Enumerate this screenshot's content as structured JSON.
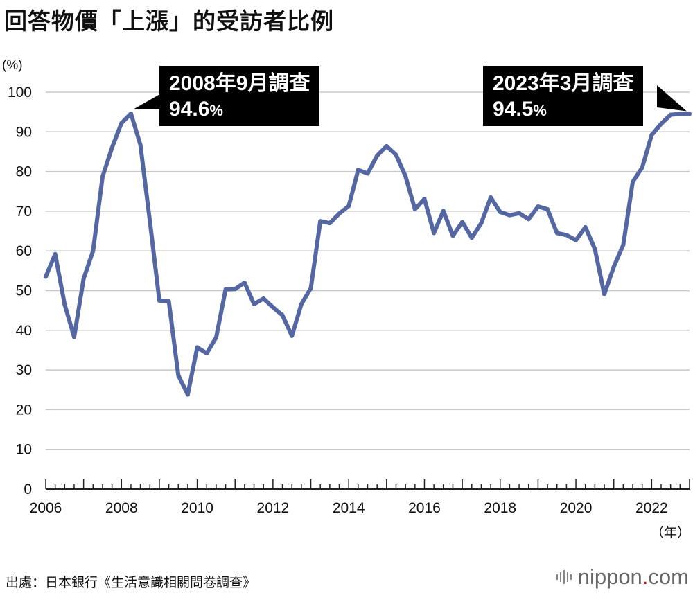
{
  "chart_data": {
    "type": "line",
    "title": "回答物價「上漲」的受訪者比例",
    "ylabel": "(%)",
    "xlabel": "（年）",
    "ylim": [
      0,
      100
    ],
    "xlim": [
      2006,
      2023
    ],
    "grid": true,
    "y_ticks": [
      0,
      10,
      20,
      30,
      40,
      50,
      60,
      70,
      80,
      90,
      100
    ],
    "x_ticks": [
      2006,
      2008,
      2010,
      2012,
      2014,
      2016,
      2018,
      2020,
      2022
    ],
    "series": [
      {
        "name": "回答物價「上漲」的受訪者比例",
        "color": "#5567a3",
        "x": [
          2006.0,
          2006.25,
          2006.5,
          2006.75,
          2007.0,
          2007.25,
          2007.5,
          2007.75,
          2008.0,
          2008.25,
          2008.5,
          2008.75,
          2009.0,
          2009.25,
          2009.5,
          2009.75,
          2010.0,
          2010.25,
          2010.5,
          2010.75,
          2011.0,
          2011.25,
          2011.5,
          2011.75,
          2012.0,
          2012.25,
          2012.5,
          2012.75,
          2013.0,
          2013.25,
          2013.5,
          2013.75,
          2014.0,
          2014.25,
          2014.5,
          2014.75,
          2015.0,
          2015.25,
          2015.5,
          2015.75,
          2016.0,
          2016.25,
          2016.5,
          2016.75,
          2017.0,
          2017.25,
          2017.5,
          2017.75,
          2018.0,
          2018.25,
          2018.5,
          2018.75,
          2019.0,
          2019.25,
          2019.5,
          2019.75,
          2020.0,
          2020.25,
          2020.5,
          2020.75,
          2021.0,
          2021.25,
          2021.5,
          2021.75,
          2022.0,
          2022.25,
          2022.5,
          2022.75,
          2023.0
        ],
        "values": [
          53.5,
          59.2,
          46.5,
          38.3,
          53.0,
          60.0,
          78.7,
          86.0,
          92.2,
          94.6,
          86.7,
          67.5,
          47.5,
          47.3,
          28.7,
          23.8,
          35.7,
          34.2,
          38.2,
          50.3,
          50.4,
          52.0,
          46.6,
          48.0,
          45.8,
          43.8,
          38.6,
          46.6,
          50.6,
          67.5,
          67.0,
          69.4,
          71.3,
          80.4,
          79.5,
          84.0,
          86.4,
          84.2,
          78.8,
          70.5,
          73.1,
          64.5,
          70.1,
          63.8,
          67.3,
          63.3,
          67.0,
          73.5,
          69.8,
          69.0,
          69.5,
          68.0,
          71.2,
          70.5,
          64.5,
          64.0,
          62.7,
          66.0,
          60.5,
          49.1,
          56.0,
          61.5,
          77.4,
          81.0,
          89.2,
          92.0,
          94.3,
          94.5,
          94.5
        ]
      }
    ],
    "annotations": [
      {
        "x": 2008.25,
        "y": 94.6,
        "line1": "2008年9月調查",
        "value": "94.6",
        "unit": "%"
      },
      {
        "x": 2023.0,
        "y": 94.5,
        "line1": "2023年3月調查",
        "value": "94.5",
        "unit": "%"
      }
    ]
  },
  "footer": {
    "source": "出處：日本銀行《生活意識相關問卷調查》",
    "logo_main": "nippon",
    "logo_dot": ".",
    "logo_suffix": "com"
  }
}
